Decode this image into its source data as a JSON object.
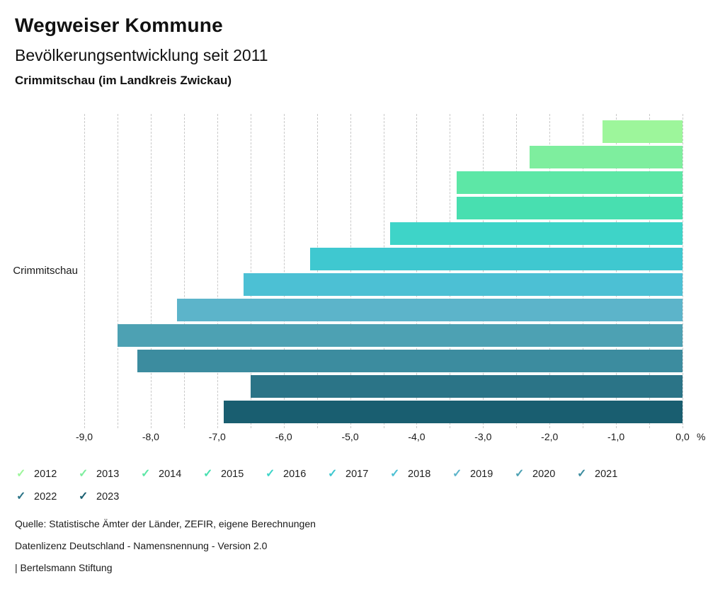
{
  "header": {
    "app_title": "Wegweiser Kommune",
    "chart_title": "Bevölkerungsentwicklung seit 2011",
    "location": "Crimmitschau (im Landkreis Zwickau)"
  },
  "chart_data": {
    "type": "bar",
    "orientation": "horizontal",
    "title": "Bevölkerungsentwicklung seit 2011",
    "region_label": "Crimmitschau",
    "unit": "%",
    "categories": [
      "2012",
      "2013",
      "2014",
      "2015",
      "2016",
      "2017",
      "2018",
      "2019",
      "2020",
      "2021",
      "2022",
      "2023"
    ],
    "values": [
      -1.2,
      -2.3,
      -3.4,
      -3.4,
      -4.4,
      -5.6,
      -6.6,
      -7.6,
      -8.5,
      -8.2,
      -6.5,
      -6.9
    ],
    "colors": [
      "#9df69b",
      "#7eee9e",
      "#5de7a6",
      "#48dfb0",
      "#3ed4c8",
      "#3fc8d0",
      "#4cc0d4",
      "#5cb4ca",
      "#4da1b3",
      "#3c8c9f",
      "#2b7487",
      "#195e70"
    ],
    "xlim": [
      -9,
      0
    ],
    "x_minor_step": 0.5,
    "x_tick_labels": [
      "-9,0",
      "-8,0",
      "-7,0",
      "-6,0",
      "-5,0",
      "-4,0",
      "-3,0",
      "-2,0",
      "-1,0",
      "0,0"
    ],
    "grid": "vertical-dashed",
    "legend_position": "bottom",
    "legend_check_glyph": "✓"
  },
  "footer": {
    "source": "Quelle: Statistische Ämter der Länder, ZEFIR, eigene Berechnungen",
    "license": "Datenlizenz Deutschland - Namensnennung - Version 2.0",
    "attribution": "| Bertelsmann Stiftung"
  }
}
